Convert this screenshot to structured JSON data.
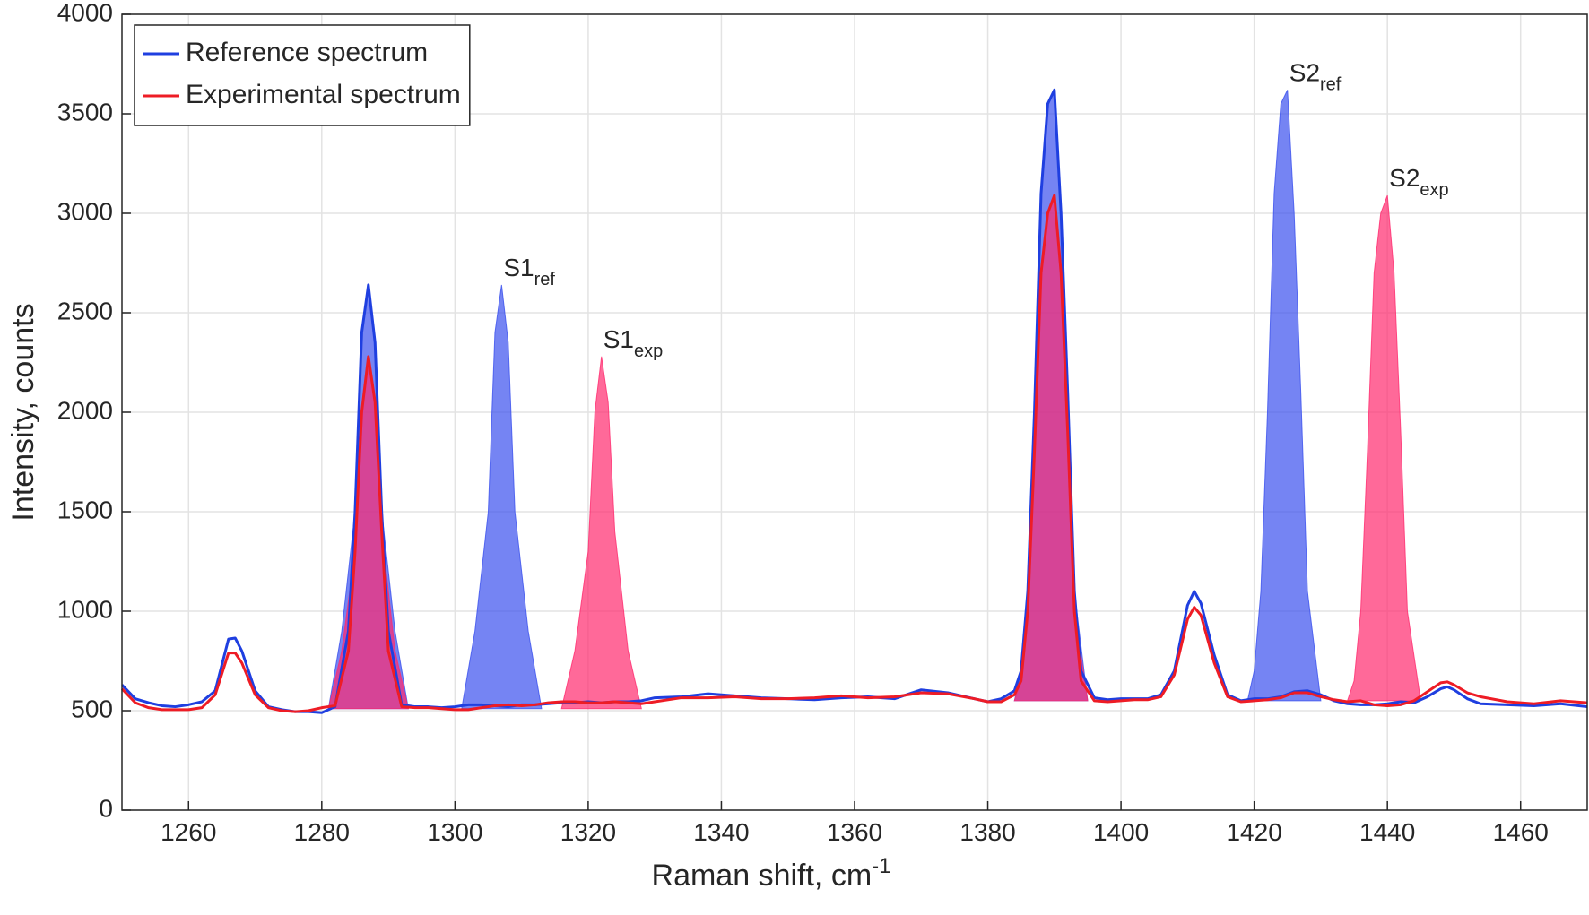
{
  "chart_data": {
    "type": "line",
    "xlabel": "Raman shift, cm",
    "xlabel_sup": "-1",
    "ylabel": "Intensity, counts",
    "xlim": [
      1250,
      1470
    ],
    "ylim": [
      0,
      4000
    ],
    "xticks": [
      1260,
      1280,
      1300,
      1320,
      1340,
      1360,
      1380,
      1400,
      1420,
      1440,
      1460
    ],
    "yticks": [
      0,
      500,
      1000,
      1500,
      2000,
      2500,
      3000,
      3500,
      4000
    ],
    "grid": true,
    "legend": "upper-left",
    "x": [
      1250,
      1252,
      1254,
      1256,
      1258,
      1260,
      1262,
      1264,
      1266,
      1267,
      1268,
      1270,
      1272,
      1274,
      1276,
      1278,
      1280,
      1282,
      1284,
      1285,
      1286,
      1287,
      1288,
      1289,
      1290,
      1292,
      1294,
      1296,
      1298,
      1300,
      1302,
      1304,
      1306,
      1308,
      1310,
      1312,
      1314,
      1316,
      1318,
      1320,
      1322,
      1324,
      1326,
      1328,
      1330,
      1334,
      1338,
      1342,
      1346,
      1350,
      1354,
      1358,
      1362,
      1366,
      1370,
      1374,
      1378,
      1380,
      1382,
      1384,
      1385,
      1386,
      1387,
      1388,
      1389,
      1390,
      1391,
      1392,
      1393,
      1394,
      1396,
      1398,
      1400,
      1402,
      1404,
      1406,
      1408,
      1410,
      1411,
      1412,
      1414,
      1416,
      1418,
      1420,
      1422,
      1424,
      1426,
      1428,
      1430,
      1432,
      1434,
      1436,
      1438,
      1440,
      1442,
      1444,
      1446,
      1448,
      1449,
      1450,
      1452,
      1454,
      1458,
      1462,
      1466,
      1470
    ],
    "series": [
      {
        "name": "Reference spectrum",
        "color": "#1f3fe0",
        "values": [
          630,
          560,
          540,
          525,
          520,
          530,
          545,
          600,
          860,
          865,
          800,
          600,
          520,
          505,
          495,
          495,
          490,
          520,
          900,
          1500,
          2400,
          2640,
          2350,
          1500,
          900,
          530,
          520,
          520,
          515,
          520,
          530,
          530,
          525,
          520,
          530,
          530,
          535,
          540,
          540,
          545,
          540,
          545,
          545,
          550,
          565,
          570,
          585,
          575,
          565,
          560,
          555,
          565,
          570,
          560,
          605,
          590,
          560,
          545,
          560,
          600,
          700,
          1100,
          2000,
          3100,
          3550,
          3620,
          3000,
          2100,
          1100,
          700,
          565,
          555,
          560,
          560,
          560,
          580,
          700,
          1030,
          1100,
          1040,
          780,
          580,
          550,
          560,
          560,
          570,
          595,
          600,
          580,
          550,
          535,
          530,
          530,
          535,
          545,
          540,
          570,
          610,
          620,
          605,
          560,
          535,
          530,
          525,
          535,
          520
        ]
      },
      {
        "name": "Experimental spectrum",
        "color": "#ee1c25",
        "values": [
          610,
          540,
          515,
          505,
          505,
          505,
          515,
          580,
          790,
          790,
          740,
          580,
          515,
          500,
          495,
          500,
          515,
          525,
          800,
          1300,
          2000,
          2280,
          2050,
          1400,
          800,
          520,
          515,
          515,
          510,
          505,
          505,
          515,
          525,
          530,
          525,
          530,
          540,
          545,
          545,
          540,
          540,
          545,
          540,
          535,
          545,
          565,
          565,
          570,
          560,
          560,
          565,
          575,
          565,
          570,
          590,
          585,
          560,
          545,
          545,
          580,
          650,
          1000,
          1800,
          2700,
          3000,
          3090,
          2700,
          1900,
          1000,
          650,
          550,
          545,
          550,
          555,
          555,
          570,
          680,
          960,
          1020,
          980,
          740,
          570,
          545,
          550,
          555,
          565,
          590,
          590,
          570,
          555,
          545,
          550,
          530,
          525,
          530,
          550,
          595,
          640,
          645,
          630,
          590,
          570,
          545,
          535,
          550,
          540
        ]
      }
    ],
    "fills": [
      {
        "color": "#3a50ee",
        "base": 510,
        "x": [
          1281,
          1283,
          1285,
          1286,
          1287,
          1288,
          1289,
          1291,
          1293
        ],
        "values": [
          510,
          900,
          1500,
          2400,
          2640,
          2350,
          1500,
          900,
          510
        ]
      },
      {
        "color": "#ff2a6e",
        "base": 510,
        "x": [
          1281,
          1283,
          1285,
          1286,
          1287,
          1288,
          1289,
          1291,
          1293
        ],
        "values": [
          510,
          800,
          1300,
          2000,
          2280,
          2050,
          1400,
          800,
          510
        ]
      },
      {
        "color": "#3a50ee",
        "base": 510,
        "x": [
          1301,
          1303,
          1305,
          1306,
          1307,
          1308,
          1309,
          1311,
          1313
        ],
        "values": [
          510,
          900,
          1500,
          2400,
          2640,
          2350,
          1500,
          900,
          510
        ],
        "label": "S1",
        "label_sub": "ref"
      },
      {
        "color": "#ff2a6e",
        "base": 510,
        "x": [
          1316,
          1318,
          1320,
          1321,
          1322,
          1323,
          1324,
          1326,
          1328
        ],
        "values": [
          510,
          800,
          1300,
          2000,
          2280,
          2050,
          1400,
          800,
          510
        ],
        "label": "S1",
        "label_sub": "exp"
      },
      {
        "color": "#3a50ee",
        "base": 550,
        "x": [
          1384,
          1385,
          1386,
          1387,
          1388,
          1389,
          1390,
          1391,
          1392,
          1393,
          1395
        ],
        "values": [
          550,
          700,
          1100,
          2000,
          3100,
          3550,
          3620,
          3000,
          2100,
          1100,
          550
        ]
      },
      {
        "color": "#ff2a6e",
        "base": 550,
        "x": [
          1384,
          1385,
          1386,
          1387,
          1388,
          1389,
          1390,
          1391,
          1392,
          1393,
          1395
        ],
        "values": [
          550,
          650,
          1000,
          1800,
          2700,
          3000,
          3090,
          2700,
          1900,
          1000,
          550
        ]
      },
      {
        "color": "#3a50ee",
        "base": 550,
        "x": [
          1419,
          1420,
          1421,
          1422,
          1423,
          1424,
          1425,
          1426,
          1427,
          1428,
          1430
        ],
        "values": [
          550,
          700,
          1100,
          2000,
          3100,
          3550,
          3620,
          3000,
          2100,
          1100,
          550
        ],
        "label": "S2",
        "label_sub": "ref"
      },
      {
        "color": "#ff2a6e",
        "base": 550,
        "x": [
          1434,
          1435,
          1436,
          1437,
          1438,
          1439,
          1440,
          1441,
          1442,
          1443,
          1445
        ],
        "values": [
          550,
          650,
          1000,
          1800,
          2700,
          3000,
          3090,
          2700,
          1900,
          1000,
          550
        ],
        "label": "S2",
        "label_sub": "exp"
      }
    ]
  }
}
